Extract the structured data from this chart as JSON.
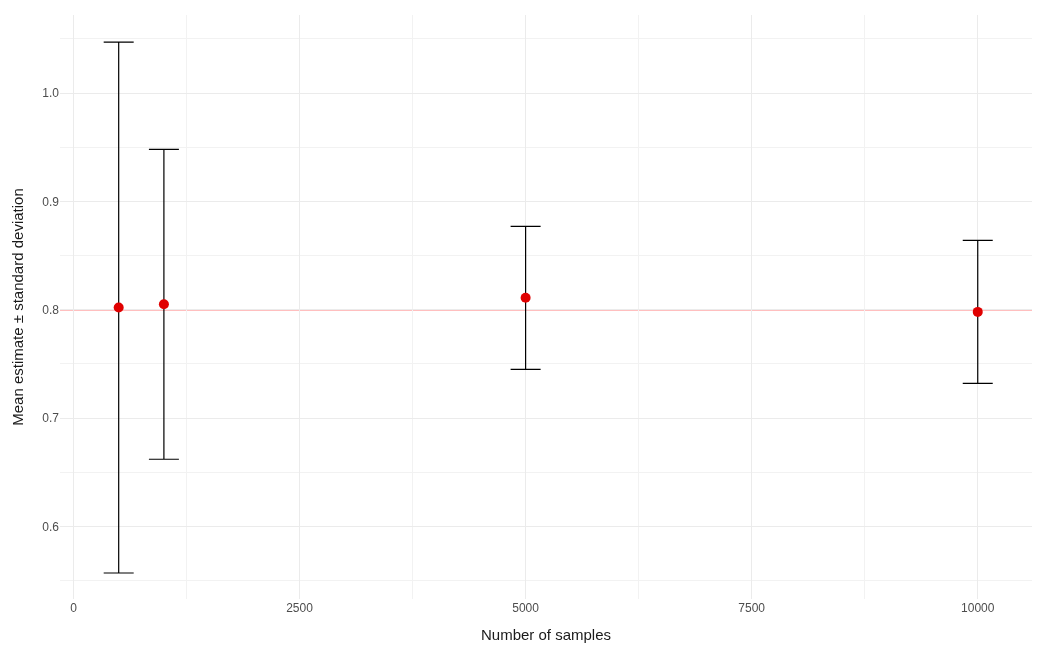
{
  "chart_data": {
    "type": "scatter",
    "xlabel": "Number of samples",
    "ylabel": "Mean estimate ± standard deviation",
    "x": [
      500,
      1000,
      5000,
      10000
    ],
    "series": [
      {
        "color": "#e00000",
        "values": [
          0.802,
          0.805,
          0.811,
          0.798
        ],
        "errors": [
          0.245,
          0.143,
          0.066,
          0.066
        ]
      }
    ],
    "xlim": [
      -149,
      10600
    ],
    "xticks": [
      0,
      2500,
      5000,
      7500,
      10000
    ],
    "ylim": [
      0.533,
      1.072
    ],
    "yticks": [
      0.6,
      0.7,
      0.8,
      0.9,
      {
        "value": 1,
        "label": "1.0"
      }
    ],
    "ref_lines": [
      {
        "axis": "y",
        "value": 0.8,
        "color": "#ff0000"
      }
    ],
    "grid": true,
    "marker": "circle"
  }
}
